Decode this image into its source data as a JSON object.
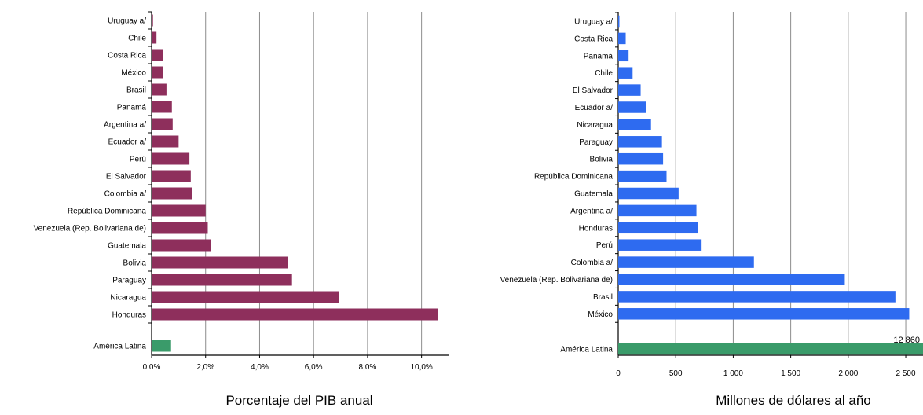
{
  "chart_data": [
    {
      "type": "bar",
      "orientation": "horizontal",
      "title": "",
      "xlabel": "Porcentaje del PIB anual",
      "ylabel": "",
      "xlim": [
        0,
        11
      ],
      "grid": true,
      "colors": {
        "bars": "#8e2f5c",
        "total": "#3a9b6a"
      },
      "xticks": [
        {
          "value": 0,
          "label": "0,0%"
        },
        {
          "value": 2,
          "label": "2,0%"
        },
        {
          "value": 4,
          "label": "4,0%"
        },
        {
          "value": 6,
          "label": "6,0%"
        },
        {
          "value": 8,
          "label": "8,0%"
        },
        {
          "value": 10,
          "label": "10,0%"
        }
      ],
      "categories": [
        "Uruguay a/",
        "Chile",
        "Costa Rica",
        "México",
        "Brasil",
        "Panamá",
        "Argentina a/",
        "Ecuador a/",
        "Perú",
        "El Salvador",
        "Colombia a/",
        "República Dominicana",
        "Venezuela (Rep. Bolivariana de)",
        "Guatemala",
        "Bolivia",
        "Paraguay",
        "Nicaragua",
        "Honduras"
      ],
      "values": [
        0.05,
        0.18,
        0.42,
        0.42,
        0.55,
        0.75,
        0.78,
        1.0,
        1.4,
        1.45,
        1.5,
        2.0,
        2.08,
        2.2,
        5.05,
        5.2,
        6.95,
        10.6
      ],
      "total": {
        "label": "América Latina",
        "value": 0.72
      }
    },
    {
      "type": "bar",
      "orientation": "horizontal",
      "title": "",
      "xlabel": "Millones de dólares al año",
      "ylabel": "",
      "xlim": [
        0,
        2650
      ],
      "grid": true,
      "colors": {
        "bars": "#2e6bf0",
        "total": "#3a9b6a"
      },
      "xticks": [
        {
          "value": 0,
          "label": "0"
        },
        {
          "value": 500,
          "label": "500"
        },
        {
          "value": 1000,
          "label": "1 000"
        },
        {
          "value": 1500,
          "label": "1 500"
        },
        {
          "value": 2000,
          "label": "2 000"
        },
        {
          "value": 2500,
          "label": "2 500"
        }
      ],
      "categories": [
        "Uruguay a/",
        "Costa Rica",
        "Panamá",
        "Chile",
        "El Salvador",
        "Ecuador a/",
        "Nicaragua",
        "Paraguay",
        "Bolivia",
        "República Dominicana",
        "Guatemala",
        "Argentina a/",
        "Honduras",
        "Perú",
        "Colombia a/",
        "Venezuela (Rep. Bolivariana de)",
        "Brasil",
        "México"
      ],
      "values": [
        10,
        65,
        90,
        125,
        195,
        240,
        285,
        380,
        390,
        420,
        525,
        680,
        695,
        725,
        1180,
        1970,
        2410,
        2530
      ],
      "total": {
        "label": "América Latina",
        "value": 12860,
        "data_label": "12 860"
      }
    }
  ]
}
